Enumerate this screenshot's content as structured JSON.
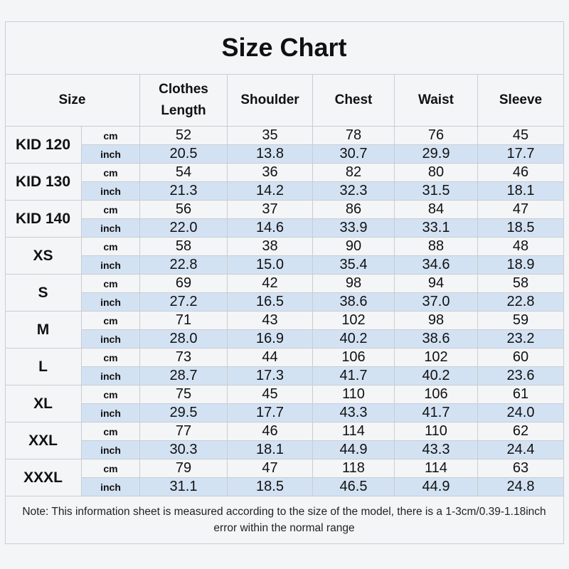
{
  "title": "Size Chart",
  "table": {
    "headers": [
      "Size",
      "Clothes Length",
      "Shoulder",
      "Chest",
      "Waist",
      "Sleeve"
    ],
    "rows": [
      {
        "size": "KID 120",
        "cm_label": "cm",
        "cm": [
          "52",
          "35",
          "78",
          "76",
          "45"
        ],
        "inch_label": "inch",
        "inch": [
          "20.5",
          "13.8",
          "30.7",
          "29.9",
          "17.7"
        ]
      },
      {
        "size": "KID 130",
        "cm_label": "cm",
        "cm": [
          "54",
          "36",
          "82",
          "80",
          "46"
        ],
        "inch_label": "inch",
        "inch": [
          "21.3",
          "14.2",
          "32.3",
          "31.5",
          "18.1"
        ]
      },
      {
        "size": "KID 140",
        "cm_label": "cm",
        "cm": [
          "56",
          "37",
          "86",
          "84",
          "47"
        ],
        "inch_label": "inch",
        "inch": [
          "22.0",
          "14.6",
          "33.9",
          "33.1",
          "18.5"
        ]
      },
      {
        "size": "XS",
        "cm_label": "cm",
        "cm": [
          "58",
          "38",
          "90",
          "88",
          "48"
        ],
        "inch_label": "inch",
        "inch": [
          "22.8",
          "15.0",
          "35.4",
          "34.6",
          "18.9"
        ]
      },
      {
        "size": "S",
        "cm_label": "cm",
        "cm": [
          "69",
          "42",
          "98",
          "94",
          "58"
        ],
        "inch_label": "inch",
        "inch": [
          "27.2",
          "16.5",
          "38.6",
          "37.0",
          "22.8"
        ]
      },
      {
        "size": "M",
        "cm_label": "cm",
        "cm": [
          "71",
          "43",
          "102",
          "98",
          "59"
        ],
        "inch_label": "inch",
        "inch": [
          "28.0",
          "16.9",
          "40.2",
          "38.6",
          "23.2"
        ]
      },
      {
        "size": "L",
        "cm_label": "cm",
        "cm": [
          "73",
          "44",
          "106",
          "102",
          "60"
        ],
        "inch_label": "inch",
        "inch": [
          "28.7",
          "17.3",
          "41.7",
          "40.2",
          "23.6"
        ]
      },
      {
        "size": "XL",
        "cm_label": "cm",
        "cm": [
          "75",
          "45",
          "110",
          "106",
          "61"
        ],
        "inch_label": "inch",
        "inch": [
          "29.5",
          "17.7",
          "43.3",
          "41.7",
          "24.0"
        ]
      },
      {
        "size": "XXL",
        "cm_label": "cm",
        "cm": [
          "77",
          "46",
          "114",
          "110",
          "62"
        ],
        "inch_label": "inch",
        "inch": [
          "30.3",
          "18.1",
          "44.9",
          "43.3",
          "24.4"
        ]
      },
      {
        "size": "XXXL",
        "cm_label": "cm",
        "cm": [
          "79",
          "47",
          "118",
          "114",
          "63"
        ],
        "inch_label": "inch",
        "inch": [
          "31.1",
          "18.5",
          "46.5",
          "44.9",
          "24.8"
        ]
      }
    ]
  },
  "note": "Note: This information sheet is measured according to the size of the model, there is a 1-3cm/0.39-1.18inch error within the normal range"
}
